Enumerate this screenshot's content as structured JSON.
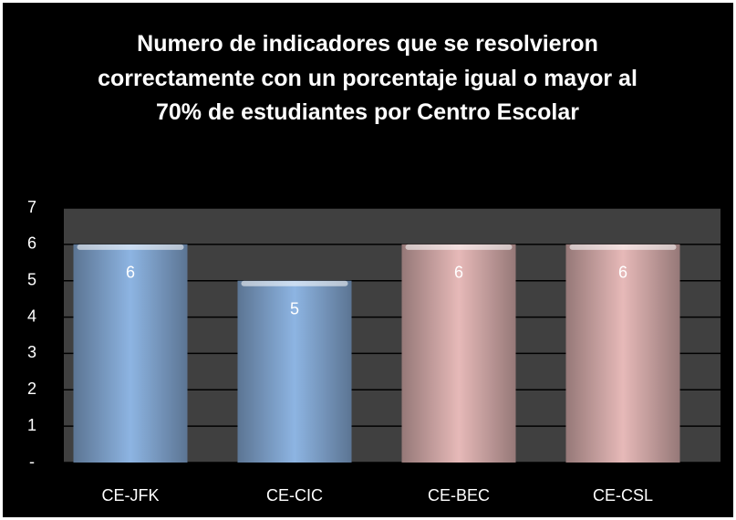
{
  "chart_data": {
    "type": "bar",
    "title": "Numero de indicadores que se resolvieron correctamente con un porcentaje igual o mayor al 70%  de estudiantes por Centro Escolar",
    "categories": [
      "CE-JFK",
      "CE-CIC",
      "CE-BEC",
      "CE-CSL"
    ],
    "values": [
      6,
      5,
      6,
      6
    ],
    "colors": [
      "#8db4e2",
      "#8db4e2",
      "#e6b9b8",
      "#e6b9b8"
    ],
    "ylim": [
      0,
      7
    ],
    "yticks": [
      {
        "value": 0,
        "label": "-"
      },
      1,
      2,
      3,
      4,
      5,
      6,
      7
    ],
    "grid": true
  }
}
